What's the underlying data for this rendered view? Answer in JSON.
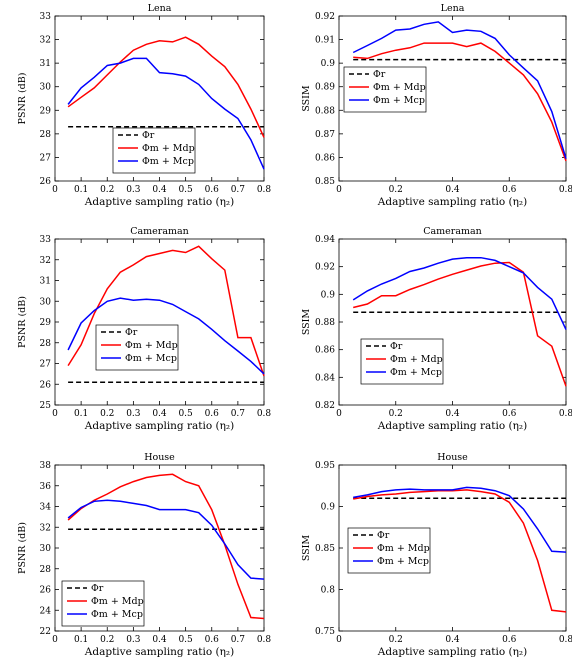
{
  "chart_data": [
    {
      "type": "line",
      "title": "Lena",
      "xlabel": "Adaptive sampling ratio (η₂)",
      "ylabel": "PSNR (dB)",
      "xlim": [
        0,
        0.8
      ],
      "ylim": [
        26,
        33
      ],
      "xticks": [
        0,
        0.1,
        0.2,
        0.3,
        0.4,
        0.5,
        0.6,
        0.7,
        0.8
      ],
      "yticks": [
        26,
        27,
        28,
        29,
        30,
        31,
        32,
        33
      ],
      "legend": "bottom-left",
      "series": [
        {
          "name": "Φr",
          "style": "dashed",
          "color": "#000000",
          "x": [
            0.05,
            0.8
          ],
          "y": [
            28.3,
            28.3
          ]
        },
        {
          "name": "Φm + Mdp",
          "style": "solid",
          "color": "#ff0000",
          "x": [
            0.05,
            0.1,
            0.15,
            0.2,
            0.25,
            0.3,
            0.35,
            0.4,
            0.45,
            0.5,
            0.55,
            0.6,
            0.65,
            0.7,
            0.75,
            0.8
          ],
          "y": [
            29.15,
            29.55,
            29.95,
            30.5,
            31.05,
            31.55,
            31.8,
            31.95,
            31.9,
            32.1,
            31.8,
            31.3,
            30.85,
            30.1,
            29.05,
            27.85
          ]
        },
        {
          "name": "Φm + Mcp",
          "style": "solid",
          "color": "#0000ff",
          "x": [
            0.05,
            0.1,
            0.15,
            0.2,
            0.25,
            0.3,
            0.35,
            0.4,
            0.45,
            0.5,
            0.55,
            0.6,
            0.65,
            0.7,
            0.75,
            0.8
          ],
          "y": [
            29.25,
            29.95,
            30.4,
            30.9,
            31.0,
            31.2,
            31.2,
            30.6,
            30.55,
            30.45,
            30.1,
            29.5,
            29.05,
            28.65,
            27.75,
            26.5
          ]
        }
      ]
    },
    {
      "type": "line",
      "title": "Lena",
      "xlabel": "Adaptive sampling ratio (η₂)",
      "ylabel": "SSIM",
      "xlim": [
        0,
        0.8
      ],
      "ylim": [
        0.85,
        0.92
      ],
      "xticks": [
        0,
        0.2,
        0.4,
        0.6,
        0.8
      ],
      "yticks": [
        0.85,
        0.86,
        0.87,
        0.88,
        0.89,
        0.9,
        0.91,
        0.92
      ],
      "legend": "middle-left",
      "series": [
        {
          "name": "Φr",
          "style": "dashed",
          "color": "#000000",
          "x": [
            0.05,
            0.8
          ],
          "y": [
            0.9015,
            0.9015
          ]
        },
        {
          "name": "Φm + Mdp",
          "style": "solid",
          "color": "#ff0000",
          "x": [
            0.05,
            0.1,
            0.15,
            0.2,
            0.25,
            0.3,
            0.35,
            0.4,
            0.45,
            0.5,
            0.55,
            0.6,
            0.65,
            0.7,
            0.75,
            0.8
          ],
          "y": [
            0.9025,
            0.902,
            0.904,
            0.9055,
            0.9065,
            0.9085,
            0.9085,
            0.9085,
            0.907,
            0.9085,
            0.905,
            0.9,
            0.895,
            0.887,
            0.875,
            0.8585
          ]
        },
        {
          "name": "Φm + Mcp",
          "style": "solid",
          "color": "#0000ff",
          "x": [
            0.05,
            0.1,
            0.15,
            0.2,
            0.25,
            0.3,
            0.35,
            0.4,
            0.45,
            0.5,
            0.55,
            0.6,
            0.65,
            0.7,
            0.75,
            0.8
          ],
          "y": [
            0.9045,
            0.9075,
            0.9105,
            0.914,
            0.9145,
            0.9165,
            0.9175,
            0.913,
            0.914,
            0.9135,
            0.9105,
            0.9035,
            0.898,
            0.8925,
            0.8795,
            0.8595
          ]
        }
      ]
    },
    {
      "type": "line",
      "title": "Cameraman",
      "xlabel": "Adaptive sampling ratio (η₂)",
      "ylabel": "PSNR (dB)",
      "xlim": [
        0,
        0.8
      ],
      "ylim": [
        25,
        33
      ],
      "xticks": [
        0,
        0.1,
        0.2,
        0.3,
        0.4,
        0.5,
        0.6,
        0.7,
        0.8
      ],
      "yticks": [
        25,
        26,
        27,
        28,
        29,
        30,
        31,
        32,
        33
      ],
      "legend": "middle-left",
      "series": [
        {
          "name": "Φr",
          "style": "dashed",
          "color": "#000000",
          "x": [
            0.05,
            0.8
          ],
          "y": [
            26.1,
            26.1
          ]
        },
        {
          "name": "Φm + Mdp",
          "style": "solid",
          "color": "#ff0000",
          "x": [
            0.05,
            0.1,
            0.15,
            0.2,
            0.25,
            0.3,
            0.35,
            0.4,
            0.45,
            0.5,
            0.55,
            0.6,
            0.65,
            0.7,
            0.75,
            0.8
          ],
          "y": [
            26.9,
            27.9,
            29.4,
            30.6,
            31.4,
            31.75,
            32.15,
            32.3,
            32.45,
            32.35,
            32.65,
            32.05,
            31.5,
            28.25,
            28.25,
            26.4
          ]
        },
        {
          "name": "Φm + Mcp",
          "style": "solid",
          "color": "#0000ff",
          "x": [
            0.05,
            0.1,
            0.15,
            0.2,
            0.25,
            0.3,
            0.35,
            0.4,
            0.45,
            0.5,
            0.55,
            0.6,
            0.65,
            0.7,
            0.75,
            0.8
          ],
          "y": [
            27.65,
            28.95,
            29.55,
            30.0,
            30.15,
            30.05,
            30.1,
            30.05,
            29.85,
            29.5,
            29.15,
            28.65,
            28.1,
            27.6,
            27.1,
            26.5
          ]
        }
      ]
    },
    {
      "type": "line",
      "title": "Cameraman",
      "xlabel": "Adaptive sampling ratio (η₂)",
      "ylabel": "SSIM",
      "xlim": [
        0,
        0.8
      ],
      "ylim": [
        0.82,
        0.94
      ],
      "xticks": [
        0,
        0.2,
        0.4,
        0.6,
        0.8
      ],
      "yticks": [
        0.82,
        0.84,
        0.86,
        0.88,
        0.9,
        0.92,
        0.94
      ],
      "legend": "bottom-left",
      "series": [
        {
          "name": "Φr",
          "style": "dashed",
          "color": "#000000",
          "x": [
            0.05,
            0.8
          ],
          "y": [
            0.887,
            0.887
          ]
        },
        {
          "name": "Φm + Mdp",
          "style": "solid",
          "color": "#ff0000",
          "x": [
            0.05,
            0.1,
            0.15,
            0.2,
            0.25,
            0.3,
            0.35,
            0.4,
            0.45,
            0.5,
            0.55,
            0.6,
            0.65,
            0.7,
            0.75,
            0.8
          ],
          "y": [
            0.8905,
            0.893,
            0.899,
            0.899,
            0.9035,
            0.907,
            0.911,
            0.9145,
            0.9175,
            0.9205,
            0.9225,
            0.923,
            0.916,
            0.87,
            0.8625,
            0.8335
          ]
        },
        {
          "name": "Φm + Mcp",
          "style": "solid",
          "color": "#0000ff",
          "x": [
            0.05,
            0.1,
            0.15,
            0.2,
            0.25,
            0.3,
            0.35,
            0.4,
            0.45,
            0.5,
            0.55,
            0.6,
            0.65,
            0.7,
            0.75,
            0.8
          ],
          "y": [
            0.896,
            0.9025,
            0.9075,
            0.9115,
            0.9165,
            0.919,
            0.9225,
            0.9255,
            0.9265,
            0.9265,
            0.9245,
            0.92,
            0.9155,
            0.905,
            0.8965,
            0.8745
          ]
        }
      ]
    },
    {
      "type": "line",
      "title": "House",
      "xlabel": "Adaptive sampling ratio (η₂)",
      "ylabel": "PSNR (dB)",
      "xlim": [
        0,
        0.8
      ],
      "ylim": [
        22,
        38
      ],
      "xticks": [
        0,
        0.1,
        0.2,
        0.3,
        0.4,
        0.5,
        0.6,
        0.7,
        0.8
      ],
      "yticks": [
        22,
        24,
        26,
        28,
        30,
        32,
        34,
        36,
        38
      ],
      "legend": "bottom-left",
      "series": [
        {
          "name": "Φr",
          "style": "dashed",
          "color": "#000000",
          "x": [
            0.05,
            0.8
          ],
          "y": [
            31.8,
            31.8
          ]
        },
        {
          "name": "Φm + Mdp",
          "style": "solid",
          "color": "#ff0000",
          "x": [
            0.05,
            0.1,
            0.15,
            0.2,
            0.25,
            0.3,
            0.35,
            0.4,
            0.45,
            0.5,
            0.55,
            0.6,
            0.65,
            0.7,
            0.75,
            0.8
          ],
          "y": [
            32.7,
            33.8,
            34.6,
            35.2,
            35.9,
            36.4,
            36.8,
            37.0,
            37.1,
            36.4,
            36.0,
            33.7,
            30.3,
            26.5,
            23.3,
            23.2
          ]
        },
        {
          "name": "Φm + Mcp",
          "style": "solid",
          "color": "#0000ff",
          "x": [
            0.05,
            0.1,
            0.15,
            0.2,
            0.25,
            0.3,
            0.35,
            0.4,
            0.45,
            0.5,
            0.55,
            0.6,
            0.65,
            0.7,
            0.75,
            0.8
          ],
          "y": [
            32.9,
            33.9,
            34.5,
            34.6,
            34.5,
            34.3,
            34.1,
            33.7,
            33.7,
            33.7,
            33.4,
            32.2,
            30.4,
            28.4,
            27.1,
            27.0
          ]
        }
      ]
    },
    {
      "type": "line",
      "title": "House",
      "xlabel": "Adaptive sampling ratio (η₂)",
      "ylabel": "SSIM",
      "xlim": [
        0,
        0.8
      ],
      "ylim": [
        0.75,
        0.95
      ],
      "xticks": [
        0,
        0.2,
        0.4,
        0.6,
        0.8
      ],
      "yticks": [
        0.75,
        0.8,
        0.85,
        0.9,
        0.95
      ],
      "legend": "middle-left",
      "series": [
        {
          "name": "Φr",
          "style": "dashed",
          "color": "#000000",
          "x": [
            0.05,
            0.8
          ],
          "y": [
            0.91,
            0.91
          ]
        },
        {
          "name": "Φm + Mdp",
          "style": "solid",
          "color": "#ff0000",
          "x": [
            0.05,
            0.1,
            0.15,
            0.2,
            0.25,
            0.3,
            0.35,
            0.4,
            0.45,
            0.5,
            0.55,
            0.6,
            0.65,
            0.7,
            0.75,
            0.8
          ],
          "y": [
            0.909,
            0.912,
            0.914,
            0.915,
            0.917,
            0.918,
            0.919,
            0.919,
            0.92,
            0.918,
            0.915,
            0.905,
            0.88,
            0.835,
            0.775,
            0.773
          ]
        },
        {
          "name": "Φm + Mcp",
          "style": "solid",
          "color": "#0000ff",
          "x": [
            0.05,
            0.1,
            0.15,
            0.2,
            0.25,
            0.3,
            0.35,
            0.4,
            0.45,
            0.5,
            0.55,
            0.6,
            0.65,
            0.7,
            0.75,
            0.8
          ],
          "y": [
            0.911,
            0.914,
            0.918,
            0.92,
            0.921,
            0.92,
            0.92,
            0.92,
            0.923,
            0.922,
            0.919,
            0.913,
            0.897,
            0.873,
            0.846,
            0.845
          ]
        }
      ]
    }
  ]
}
